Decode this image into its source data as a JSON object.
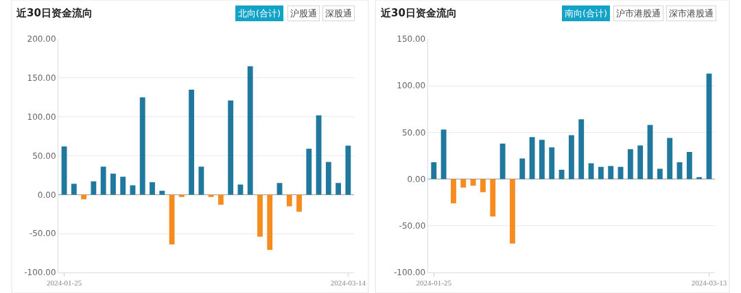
{
  "chart_data": [
    {
      "type": "bar",
      "title": "近30日资金流向",
      "annotations": [
        "北向(合计)",
        "沪股通",
        "深股通"
      ],
      "categories": [
        "2024-01-25",
        null,
        null,
        null,
        null,
        null,
        null,
        null,
        null,
        null,
        null,
        null,
        null,
        null,
        null,
        null,
        null,
        null,
        null,
        null,
        null,
        null,
        null,
        null,
        null,
        null,
        null,
        null,
        null,
        "2024-03-14"
      ],
      "values": [
        62,
        14,
        -6,
        17,
        36,
        27,
        23,
        12,
        125,
        16,
        5,
        -64,
        -3,
        135,
        36,
        -3,
        -13,
        121,
        13,
        165,
        -54,
        -71,
        15,
        -15,
        -22,
        59,
        102,
        42,
        15,
        63
      ],
      "colors": [
        "#21789f",
        "#21789f",
        "#f68b1f",
        "#21789f",
        "#21789f",
        "#21789f",
        "#21789f",
        "#21789f",
        "#21789f",
        "#21789f",
        "#21789f",
        "#f68b1f",
        "#f68b1f",
        "#21789f",
        "#21789f",
        "#f68b1f",
        "#f68b1f",
        "#21789f",
        "#21789f",
        "#21789f",
        "#f68b1f",
        "#f68b1f",
        "#21789f",
        "#f68b1f",
        "#f68b1f",
        "#21789f",
        "#21789f",
        "#21789f",
        "#21789f",
        "#21789f"
      ],
      "ylim": [
        -100,
        200
      ],
      "yticks": [
        {
          "value": -100,
          "label": "-100.00"
        },
        {
          "value": -50,
          "label": "-50.00"
        },
        {
          "value": 0,
          "label": "0.00"
        },
        {
          "value": 50,
          "label": "50.00"
        },
        {
          "value": 100,
          "label": "100.00"
        },
        {
          "value": 150,
          "label": "150.00"
        },
        {
          "value": 200,
          "label": "200.00"
        }
      ],
      "grid": "y",
      "legend": false
    },
    {
      "type": "bar",
      "title": "近30日资金流向",
      "annotations": [
        "南向(合计)",
        "沪市港股通",
        "深市港股通"
      ],
      "categories": [
        "2024-01-25",
        null,
        null,
        null,
        null,
        null,
        null,
        null,
        null,
        null,
        null,
        null,
        null,
        null,
        null,
        null,
        null,
        null,
        null,
        null,
        null,
        null,
        null,
        null,
        null,
        null,
        null,
        null,
        "2024-03-13"
      ],
      "values": [
        18,
        53,
        -26,
        -9,
        -7,
        -14,
        -40,
        38,
        -69,
        22,
        45,
        42,
        34,
        10,
        47,
        64,
        17,
        13,
        14,
        13,
        32,
        36,
        58,
        11,
        44,
        18,
        29,
        2,
        113
      ],
      "colors": [
        "#21789f",
        "#21789f",
        "#f68b1f",
        "#f68b1f",
        "#f68b1f",
        "#f68b1f",
        "#f68b1f",
        "#21789f",
        "#f68b1f",
        "#21789f",
        "#21789f",
        "#21789f",
        "#21789f",
        "#21789f",
        "#21789f",
        "#21789f",
        "#21789f",
        "#21789f",
        "#21789f",
        "#21789f",
        "#21789f",
        "#21789f",
        "#21789f",
        "#21789f",
        "#21789f",
        "#21789f",
        "#21789f",
        "#21789f",
        "#21789f"
      ],
      "ylim": [
        -100,
        150
      ],
      "yticks": [
        {
          "value": -100,
          "label": "-100.00"
        },
        {
          "value": -50,
          "label": "-50.00"
        },
        {
          "value": 0,
          "label": "0.00"
        },
        {
          "value": 50,
          "label": "50.00"
        },
        {
          "value": 100,
          "label": "100.00"
        },
        {
          "value": 150,
          "label": "150.00"
        }
      ],
      "grid": "y",
      "legend": false
    }
  ]
}
